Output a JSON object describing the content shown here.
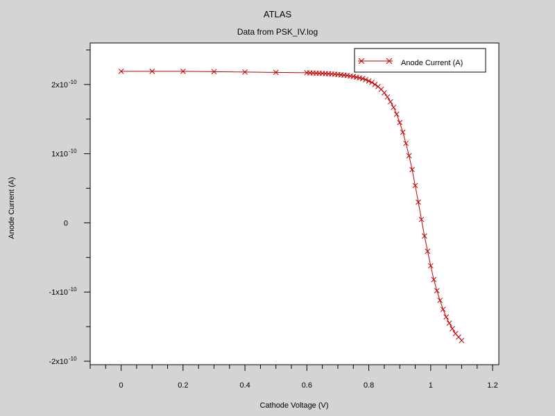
{
  "chart_data": {
    "type": "line",
    "title": "ATLAS",
    "subtitle": "Data from PSK_IV.log",
    "xlabel": "Cathode Voltage (V)",
    "ylabel": "Anode Current (A)",
    "xlim": [
      -0.1,
      1.22
    ],
    "ylim": [
      -2.05e-10,
      2.6e-10
    ],
    "x_ticks": [
      {
        "v": 0,
        "label": "0"
      },
      {
        "v": 0.2,
        "label": "0.2"
      },
      {
        "v": 0.4,
        "label": "0.4"
      },
      {
        "v": 0.6,
        "label": "0.6"
      },
      {
        "v": 0.8,
        "label": "0.8"
      },
      {
        "v": 1.0,
        "label": "1"
      },
      {
        "v": 1.2,
        "label": "1.2"
      }
    ],
    "y_ticks": [
      {
        "v": 2e-10,
        "mant": "2x10",
        "exp": "-10"
      },
      {
        "v": 1e-10,
        "mant": "1x10",
        "exp": "-10"
      },
      {
        "v": 0,
        "mant": "0",
        "exp": ""
      },
      {
        "v": -1e-10,
        "mant": "-1x10",
        "exp": "-10"
      },
      {
        "v": -2e-10,
        "mant": "-2x10",
        "exp": "-10"
      }
    ],
    "grid": false,
    "legend": "top-right",
    "series": [
      {
        "name": "Anode Current (A)",
        "color": "#c00000",
        "marker": "x",
        "x": [
          0,
          0.1,
          0.2,
          0.3,
          0.4,
          0.5,
          0.6,
          0.61,
          0.62,
          0.63,
          0.64,
          0.65,
          0.66,
          0.67,
          0.68,
          0.69,
          0.7,
          0.71,
          0.72,
          0.73,
          0.74,
          0.75,
          0.76,
          0.77,
          0.78,
          0.79,
          0.8,
          0.81,
          0.82,
          0.83,
          0.84,
          0.85,
          0.86,
          0.87,
          0.88,
          0.89,
          0.9,
          0.91,
          0.92,
          0.93,
          0.94,
          0.95,
          0.96,
          0.97,
          0.98,
          0.99,
          1.0,
          1.01,
          1.02,
          1.03,
          1.04,
          1.05,
          1.06,
          1.07,
          1.08,
          1.09,
          1.1
        ],
        "y": [
          2.19e-10,
          2.19e-10,
          2.19e-10,
          2.185e-10,
          2.18e-10,
          2.175e-10,
          2.17e-10,
          2.168e-10,
          2.166e-10,
          2.164e-10,
          2.162e-10,
          2.16e-10,
          2.158e-10,
          2.155e-10,
          2.152e-10,
          2.149e-10,
          2.145e-10,
          2.14e-10,
          2.135e-10,
          2.13e-10,
          2.122e-10,
          2.115e-10,
          2.105e-10,
          2.095e-10,
          2.085e-10,
          2.07e-10,
          2.05e-10,
          2.03e-10,
          2e-10,
          1.97e-10,
          1.93e-10,
          1.88e-10,
          1.82e-10,
          1.75e-10,
          1.67e-10,
          1.57e-10,
          1.45e-10,
          1.31e-10,
          1.15e-10,
          9.7e-11,
          7.7e-11,
          5.4e-11,
          3e-11,
          5e-12,
          -1.9e-11,
          -4.1e-11,
          -6.2e-11,
          -8.2e-11,
          -9.8e-11,
          -1.12e-10,
          -1.25e-10,
          -1.36e-10,
          -1.45e-10,
          -1.53e-10,
          -1.6e-10,
          -1.65e-10,
          -1.7e-10
        ]
      }
    ]
  }
}
